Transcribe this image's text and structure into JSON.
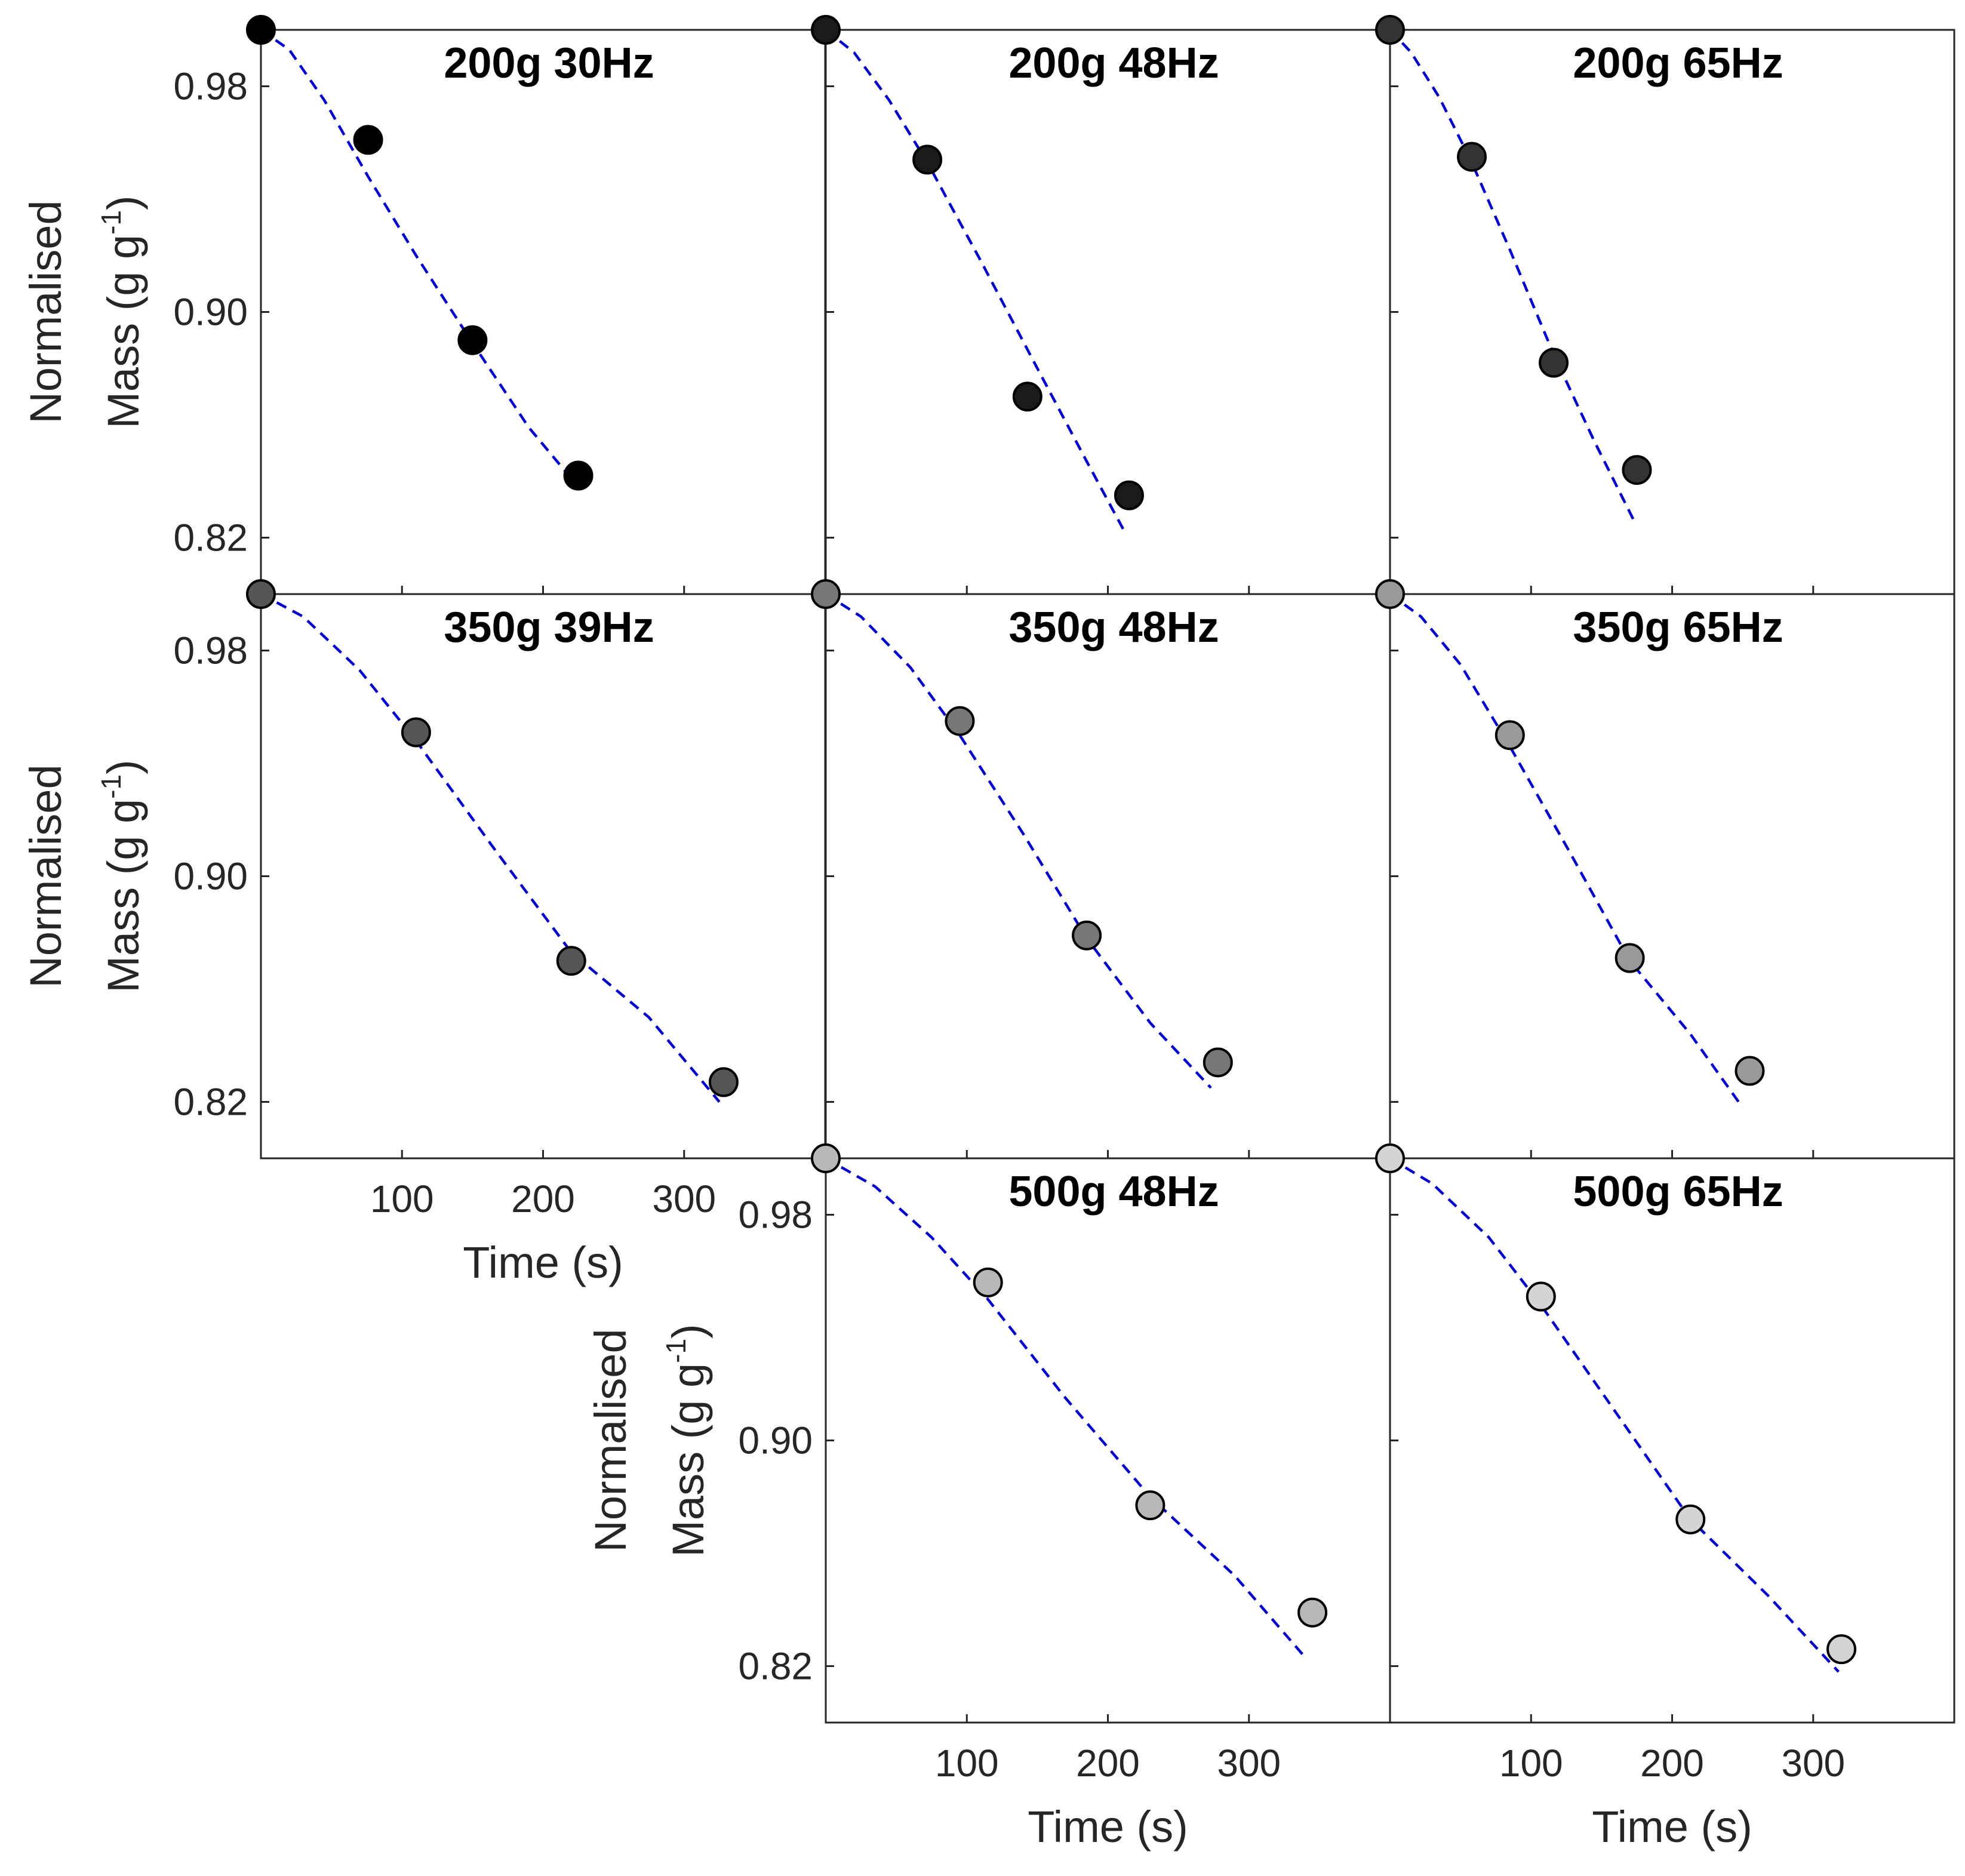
{
  "chart_data": {
    "type": "scatter",
    "xlabel": "Time (s)",
    "ylabel_line1": "Normalised",
    "ylabel_line2": "Mass (g g",
    "ylabel_sup": "-1",
    "ylabel_close": ")",
    "xlim": [
      0,
      400
    ],
    "ylim": [
      0.8,
      1.0
    ],
    "xticks": [
      100,
      200,
      300
    ],
    "xtick_labels": [
      "100",
      "200",
      "300"
    ],
    "yticks": [
      0.82,
      0.9,
      0.98
    ],
    "ytick_labels": [
      "0.82",
      "0.90",
      "0.98"
    ],
    "fit_color": "#0000cc",
    "panels": [
      {
        "title": "200g 30Hz",
        "row": 0,
        "col": 0,
        "marker_color": "#000000",
        "x": [
          0,
          76,
          150,
          225
        ],
        "y": [
          1.0,
          0.961,
          0.89,
          0.842
        ],
        "fit_x": [
          0,
          20,
          45,
          76,
          110,
          150,
          190,
          225
        ],
        "fit_y": [
          1.0,
          0.993,
          0.975,
          0.948,
          0.92,
          0.889,
          0.859,
          0.838
        ]
      },
      {
        "title": "200g 48Hz",
        "row": 0,
        "col": 1,
        "marker_color": "#1a1a1a",
        "x": [
          0,
          72,
          143,
          215
        ],
        "y": [
          1.0,
          0.954,
          0.87,
          0.835
        ],
        "fit_x": [
          0,
          20,
          45,
          72,
          110,
          150,
          185,
          212
        ],
        "fit_y": [
          1.0,
          0.992,
          0.975,
          0.953,
          0.918,
          0.88,
          0.847,
          0.822
        ]
      },
      {
        "title": "200g 65Hz",
        "row": 0,
        "col": 2,
        "marker_color": "#333333",
        "x": [
          0,
          58,
          116,
          175
        ],
        "y": [
          1.0,
          0.955,
          0.882,
          0.844
        ],
        "fit_x": [
          0,
          15,
          35,
          58,
          85,
          116,
          145,
          173
        ],
        "fit_y": [
          1.0,
          0.992,
          0.976,
          0.953,
          0.922,
          0.885,
          0.854,
          0.826
        ]
      },
      {
        "title": "350g 39Hz",
        "row": 1,
        "col": 0,
        "marker_color": "#555555",
        "x": [
          0,
          110,
          220,
          328
        ],
        "y": [
          1.0,
          0.951,
          0.87,
          0.827
        ],
        "fit_x": [
          0,
          30,
          70,
          110,
          165,
          220,
          275,
          325
        ],
        "fit_y": [
          1.0,
          0.992,
          0.973,
          0.948,
          0.91,
          0.873,
          0.85,
          0.82
        ]
      },
      {
        "title": "350g 48Hz",
        "row": 1,
        "col": 1,
        "marker_color": "#777777",
        "x": [
          0,
          95,
          185,
          278
        ],
        "y": [
          1.0,
          0.955,
          0.879,
          0.834
        ],
        "fit_x": [
          0,
          25,
          60,
          95,
          140,
          185,
          230,
          273
        ],
        "fit_y": [
          1.0,
          0.992,
          0.974,
          0.95,
          0.915,
          0.878,
          0.848,
          0.825
        ]
      },
      {
        "title": "350g 65Hz",
        "row": 1,
        "col": 2,
        "marker_color": "#999999",
        "x": [
          0,
          85,
          170,
          255
        ],
        "y": [
          1.0,
          0.95,
          0.871,
          0.831
        ],
        "fit_x": [
          0,
          22,
          50,
          85,
          128,
          170,
          213,
          250
        ],
        "fit_y": [
          1.0,
          0.992,
          0.975,
          0.946,
          0.908,
          0.87,
          0.844,
          0.818
        ]
      },
      {
        "title": "500g 48Hz",
        "row": 2,
        "col": 1,
        "marker_color": "#b8b8b8",
        "x": [
          0,
          115,
          230,
          345
        ],
        "y": [
          1.0,
          0.956,
          0.877,
          0.839
        ],
        "fit_x": [
          0,
          35,
          75,
          115,
          170,
          230,
          290,
          340
        ],
        "fit_y": [
          1.0,
          0.99,
          0.972,
          0.95,
          0.915,
          0.88,
          0.852,
          0.823
        ]
      },
      {
        "title": "500g 65Hz",
        "row": 2,
        "col": 2,
        "marker_color": "#d4d4d4",
        "x": [
          0,
          107,
          213,
          320
        ],
        "y": [
          1.0,
          0.951,
          0.872,
          0.826
        ],
        "fit_x": [
          0,
          30,
          70,
          107,
          160,
          213,
          268,
          318
        ],
        "fit_y": [
          1.0,
          0.991,
          0.972,
          0.948,
          0.91,
          0.872,
          0.845,
          0.818
        ]
      }
    ],
    "x_axis_panels": [
      3,
      6,
      7
    ],
    "y_axis_panels": [
      0,
      3,
      6
    ]
  }
}
